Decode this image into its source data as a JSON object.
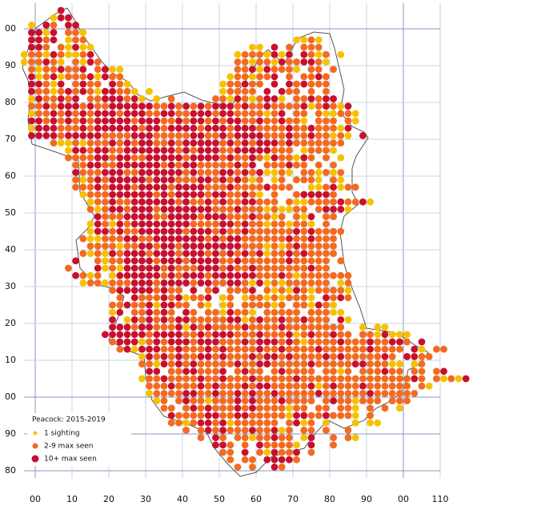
{
  "chart_data": {
    "type": "dot-map",
    "title": "Peacock:  2015-2019",
    "series": [
      {
        "name": "1 sighting",
        "color": "#f5c200"
      },
      {
        "name": "2-9 max seen",
        "color": "#f26b21"
      },
      {
        "name": "10+ max seen",
        "color": "#c8102e"
      }
    ],
    "xlim": [
      -3,
      110
    ],
    "ylim": [
      -22,
      107
    ],
    "xticks": [
      {
        "value": 0,
        "label": "00"
      },
      10,
      20,
      30,
      40,
      50,
      60,
      70,
      80,
      90,
      {
        "value": 100,
        "label": "00"
      },
      110
    ],
    "yticks": [
      {
        "value": 100,
        "label": "00"
      },
      90,
      80,
      70,
      60,
      50,
      40,
      30,
      20,
      10,
      {
        "value": 0,
        "label": "00"
      },
      {
        "value": -10,
        "label": "90"
      },
      {
        "value": -20,
        "label": "80"
      }
    ],
    "grid": true,
    "cells": [
      {
        "n": 105,
        "e": 7,
        "cells": "3"
      },
      {
        "n": 103,
        "e": 5,
        "cells": "133"
      },
      {
        "n": 101,
        "e": -1,
        "cells": "1.32.33"
      },
      {
        "n": 99,
        "e": -1,
        "cells": "3313.221"
      },
      {
        "n": 97,
        "e": -1,
        "cells": "3323.122"
      },
      {
        "n": 97,
        "e": 71,
        "cells": "1121"
      },
      {
        "n": 95,
        "e": -1,
        "cells": "332.21311"
      },
      {
        "n": 95,
        "e": 59,
        "cells": "11.3.2.222"
      },
      {
        "n": 93,
        "e": -3,
        "cells": "1221321123"
      },
      {
        "n": 93,
        "e": 55,
        "cells": "12221313.3212.1"
      },
      {
        "n": 91,
        "e": -3,
        "cells": "122321.2132"
      },
      {
        "n": 91,
        "e": 55,
        "cells": "2212213223321"
      },
      {
        "n": 89,
        "e": -1,
        "cells": "21223223.2311"
      },
      {
        "n": 89,
        "e": 55,
        "cells": "223132221.22.2"
      },
      {
        "n": 87,
        "e": -1,
        "cells": "3123122231322"
      },
      {
        "n": 87,
        "e": 53,
        "cells": "1221223.2.2232"
      },
      {
        "n": 85,
        "e": -1,
        "cells": "33213.2322.321"
      },
      {
        "n": 85,
        "e": 51,
        "cells": "122322.3.323222"
      },
      {
        "n": 83,
        "e": -1,
        "cells": "322123232133221.1"
      },
      {
        "n": 83,
        "e": 51,
        "cells": "12222.3.322.2.2"
      },
      {
        "n": 81,
        "e": -1,
        "cells": "1322323.22333231"
      },
      {
        "n": 81,
        "e": 33,
        "cells": "1.2"
      },
      {
        "n": 81,
        "e": 49,
        "cells": "2213212331.223233"
      },
      {
        "n": 79,
        "e": -1,
        "cells": "22323332322333333223232323332322322223123213"
      },
      {
        "n": 77,
        "e": -1,
        "cells": "12232323233323332233223332332222123.22.211221"
      },
      {
        "n": 75,
        "e": -1,
        "cells": "33232323233333233322323323233223223221.222.21"
      },
      {
        "n": 73,
        "e": -1,
        "cells": "13332223233333323323333233323332222322322213"
      },
      {
        "n": 71,
        "e": -1,
        "cells": "33332333332222333222223322323333222322322121"
      },
      {
        "n": 71,
        "e": 89,
        "cells": "3"
      },
      {
        "n": 69,
        "e": 5,
        "cells": "2112122232323322323333323232333232222222"
      },
      {
        "n": 67,
        "e": 9,
        "cells": "1332332233333332323332233333222.12221"
      },
      {
        "n": 65,
        "e": 9,
        "cells": "2222332332233333233332322321322132.2.1"
      },
      {
        "n": 63,
        "e": 11,
        "cells": "2233223333332323322222323.222322.2.2"
      },
      {
        "n": 61,
        "e": 11,
        "cells": "322233322333333232223323231121.221212"
      },
      {
        "n": 59,
        "e": 11,
        "cells": "21232333332333222332323212.12.2221.21"
      },
      {
        "n": 57,
        "e": 11,
        "cells": "222323332333323333222322223222..1123122"
      },
      {
        "n": 55,
        "e": 13,
        "cells": "1222333333232333323322321.2..233332"
      },
      {
        "n": 53,
        "e": 15,
        "cells": "12232233333323223232233222.211222232231"
      },
      {
        "n": 51,
        "e": 15,
        "cells": "212332333233333332223222121122.23331"
      },
      {
        "n": 49,
        "e": 17,
        "cells": "32223333223333233322232212.213.22"
      },
      {
        "n": 47,
        "e": 15,
        "cells": "1321323333333322223323221221221.2"
      },
      {
        "n": 45,
        "e": 15,
        "cells": "13323223333332333232232222223232222"
      },
      {
        "n": 43,
        "e": 13,
        "cells": "21122233223333333232332222223223222"
      },
      {
        "n": 41,
        "e": 15,
        "cells": "2222122332332333333332221212322222"
      },
      {
        "n": 39,
        "e": 13,
        "cells": "21213233323332333232323231223232222"
      },
      {
        "n": 37,
        "e": 11,
        "cells": "3..21223333233323333223222222322222 2"
      },
      {
        "n": 35,
        "e": 9,
        "cells": "2...31213333323222333232232222222322"
      },
      {
        "n": 33,
        "e": 11,
        "cells": "3212.133333323233323333332223212222222"
      },
      {
        "n": 31,
        "e": 13,
        "cells": "1221222333233332332233213121222222 12"
      },
      {
        "n": 29,
        "e": 21,
        "cells": "2333332322 3.23.2223.212132122221"
      },
      {
        "n": 27,
        "e": 23,
        "cells": "2.32223231223 12.1221212221 3232"
      },
      {
        "n": 25,
        "e": 21,
        "cells": "22322313322.21.12.222212.221321"
      },
      {
        "n": 23,
        "e": 21,
        "cells": "13.223232 32.2213221.22222 22211"
      },
      {
        "n": 21,
        "e": 21,
        "cells": "3.1323232332222233123223223222 31"
      },
      {
        "n": 19,
        "e": 21,
        "cells": "33323322231323222232222322222222"
      },
      {
        "n": 19,
        "e": 89,
        "cells": "1.11"
      },
      {
        "n": 17,
        "e": 19,
        "cells": "3333332333322323332223222312322322 3"
      },
      {
        "n": 17,
        "e": 89,
        "cells": "2213111"
      },
      {
        "n": 15,
        "e": 21,
        "cells": "23331232333233322232333232122223222322332 3"
      },
      {
        "n": 13,
        "e": 23,
        "cells": "231333223222323222232232222322222232222 31.22"
      },
      {
        "n": 11,
        "e": 29,
        "cells": "13232322332322232332322223232222232 3322"
      },
      {
        "n": 9,
        "e": 29,
        "cells": "221323232222232233222223222223322211.12"
      },
      {
        "n": 7,
        "e": 31,
        "cells": "33.22332223 2322.232222.2212.222322 22.23"
      },
      {
        "n": 5,
        "e": 29,
        "cells": "122322223223222322222322222222222222232 21213"
      },
      {
        "n": 3,
        "e": 31,
        "cells": "222322232322232332222231232223222222.21"
      },
      {
        "n": 1,
        "e": 31,
        "cells": "1222233223223232232222232222223222222"
      },
      {
        "n": -1,
        "e": 33,
        "cells": "12.2322122232322232222.23221222.222"
      },
      {
        "n": -3,
        "e": 35,
        "cells": "22.23232223232222122 22.221.2.2.1"
      },
      {
        "n": -5,
        "e": 37,
        "cells": "32222332233222221332232221.2"
      },
      {
        "n": -7,
        "e": 37,
        "cells": "221233231222222 2312.1...1.11"
      },
      {
        "n": -9,
        "e": 41,
        "cells": "2.2323222322312 22.2..2"
      },
      {
        "n": -11,
        "e": 45,
        "cells": "2.32.22122322.13..2.21"
      },
      {
        "n": -13,
        "e": 49,
        "cells": "332.2.322221.3..2"
      },
      {
        "n": -15,
        "e": 51,
        "cells": "22.3.213223.2"
      },
      {
        "n": -17,
        "e": 53,
        "cells": "2.22.33332"
      },
      {
        "n": -19,
        "e": 55,
        "cells": "2.2..32"
      }
    ]
  }
}
